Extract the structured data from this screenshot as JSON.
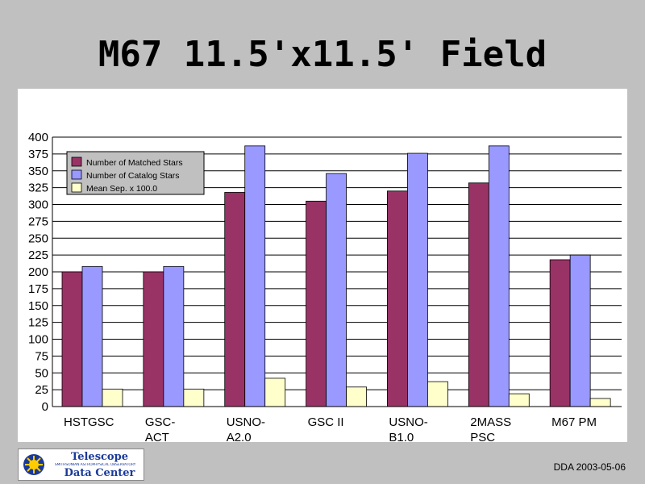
{
  "slide": {
    "title": "M67 11.5'x11.5' Field",
    "footer_credit": "DDA 2003-05-06"
  },
  "logo": {
    "line1": "Telescope",
    "line2": "SMITHSONIAN ASTROPHYSICAL OBSERVATORY",
    "line3": "Data Center",
    "icon": "sun-icon"
  },
  "colors": {
    "matched": "#993366",
    "catalog": "#9999ff",
    "meansep": "#ffffcc",
    "background": "#c0c0c0"
  },
  "chart_data": {
    "type": "bar",
    "categories": [
      "HSTGSC",
      "GSC-ACT",
      "USNO-A2.0",
      "GSC II",
      "USNO-B1.0",
      "2MASS PSC",
      "M67 PM"
    ],
    "category_lines": [
      [
        "HSTGSC"
      ],
      [
        "GSC-",
        "ACT"
      ],
      [
        "USNO-",
        "A2.0"
      ],
      [
        "GSC II"
      ],
      [
        "USNO-",
        "B1.0"
      ],
      [
        "2MASS",
        "PSC"
      ],
      [
        "M67 PM"
      ]
    ],
    "series": [
      {
        "name": "Number of Matched Stars",
        "values": [
          200,
          200,
          318,
          305,
          320,
          332,
          218
        ]
      },
      {
        "name": "Number of Catalog Stars",
        "values": [
          208,
          208,
          387,
          346,
          376,
          387,
          225
        ]
      },
      {
        "name": "Mean Sep. x 100.0",
        "values": [
          26,
          26,
          42,
          29,
          37,
          19,
          12
        ]
      }
    ],
    "ylim": [
      0,
      400
    ],
    "yticks": [
      0,
      25,
      50,
      75,
      100,
      125,
      150,
      175,
      200,
      225,
      250,
      275,
      300,
      325,
      350,
      375,
      400
    ],
    "grid": true,
    "legend_position": "top-left"
  }
}
